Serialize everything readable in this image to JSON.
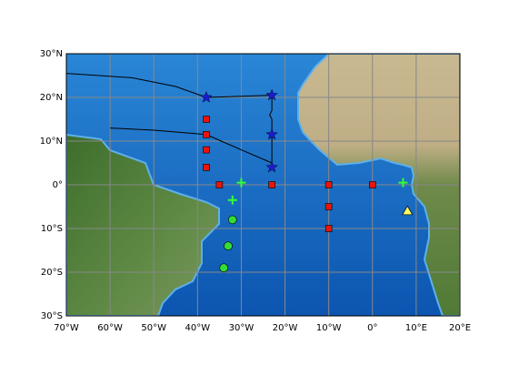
{
  "chart_data": {
    "type": "map",
    "xlim": [
      -70,
      20
    ],
    "ylim": [
      -30,
      30
    ],
    "xticks": [
      {
        "value": -70,
        "label": "70°W"
      },
      {
        "value": -60,
        "label": "60°W"
      },
      {
        "value": -50,
        "label": "50°W"
      },
      {
        "value": -40,
        "label": "40°W"
      },
      {
        "value": -30,
        "label": "30°W"
      },
      {
        "value": -20,
        "label": "20°W"
      },
      {
        "value": -10,
        "label": "10°W"
      },
      {
        "value": 0,
        "label": "0°"
      },
      {
        "value": 10,
        "label": "10°E"
      },
      {
        "value": 20,
        "label": "20°E"
      }
    ],
    "yticks": [
      {
        "value": -30,
        "label": "30°S"
      },
      {
        "value": -20,
        "label": "20°S"
      },
      {
        "value": -10,
        "label": "10°S"
      },
      {
        "value": 0,
        "label": "0°"
      },
      {
        "value": 10,
        "label": "10°N"
      },
      {
        "value": 20,
        "label": "20°N"
      },
      {
        "value": 30,
        "label": "30°N"
      }
    ],
    "grid": true,
    "lines": [
      {
        "color": "#000000",
        "x": [
          -70,
          -55,
          -45,
          -38,
          -23,
          -23,
          -23.5,
          -23,
          -23
        ],
        "y": [
          25.5,
          24.5,
          22.5,
          20,
          20.5,
          17,
          16,
          15,
          4
        ]
      },
      {
        "color": "#000000",
        "x": [
          -60,
          -50,
          -38,
          -30,
          -23
        ],
        "y": [
          13,
          12.5,
          11.5,
          8,
          5
        ]
      }
    ],
    "series": [
      {
        "marker": "square",
        "color": "#e8150c",
        "x": [
          -38,
          -38,
          -38,
          -38,
          -35,
          -23,
          -10,
          0,
          -10,
          -10
        ],
        "y": [
          15,
          11.5,
          8,
          4,
          0,
          0,
          0,
          0,
          -5,
          -10
        ]
      },
      {
        "marker": "star",
        "color": "#1b1bd0",
        "x": [
          -38,
          -23,
          -23,
          -23
        ],
        "y": [
          20,
          20.5,
          11.5,
          4
        ]
      },
      {
        "marker": "circle",
        "color": "#33dd33",
        "x": [
          -32,
          -33,
          -34
        ],
        "y": [
          -8,
          -14,
          -19
        ]
      },
      {
        "marker": "plus",
        "color": "#33ff33",
        "x": [
          -30,
          -32,
          7
        ],
        "y": [
          0.5,
          -3.5,
          0.5
        ]
      },
      {
        "marker": "triangle",
        "color": "#ffff66",
        "x": [
          8
        ],
        "y": [
          -6
        ]
      }
    ]
  }
}
